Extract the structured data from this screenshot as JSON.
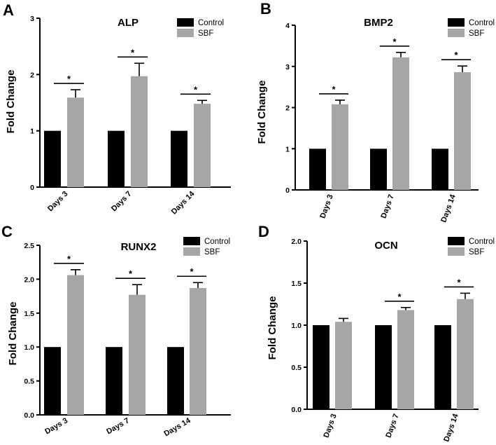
{
  "colors": {
    "control": "#000000",
    "sbf": "#a6a6a6",
    "axis": "#000000"
  },
  "chart_data": [
    {
      "panel": "A",
      "type": "bar",
      "title": "ALP",
      "ylabel": "Fold Change",
      "xlabel": "",
      "categories": [
        "Days 3",
        "Days 7",
        "Days 14"
      ],
      "ylim": [
        0,
        3
      ],
      "yticks": [
        "0",
        "1",
        "2",
        "3"
      ],
      "yticks_values": [
        0,
        1,
        2,
        3
      ],
      "series": [
        {
          "name": "Control",
          "values": [
            1,
            1,
            1
          ],
          "errors": [
            0,
            0,
            0
          ]
        },
        {
          "name": "SBF",
          "values": [
            1.59,
            1.97,
            1.48
          ],
          "errors": [
            0.14,
            0.23,
            0.06
          ]
        }
      ],
      "significance": [
        "*",
        "*",
        "*"
      ],
      "legend": "top-right",
      "category_label_rotation": -45
    },
    {
      "panel": "B",
      "type": "bar",
      "title": "BMP2",
      "ylabel": "Fold Change",
      "xlabel": "",
      "categories": [
        "Days 3",
        "Days 7",
        "Days 14"
      ],
      "ylim": [
        0,
        4
      ],
      "yticks": [
        "0",
        "1",
        "2",
        "3",
        "4"
      ],
      "yticks_values": [
        0,
        1,
        2,
        3,
        4
      ],
      "series": [
        {
          "name": "Control",
          "values": [
            1,
            1,
            1
          ],
          "errors": [
            0,
            0,
            0
          ]
        },
        {
          "name": "SBF",
          "values": [
            2.08,
            3.22,
            2.86
          ],
          "errors": [
            0.1,
            0.12,
            0.15
          ]
        }
      ],
      "significance": [
        "*",
        "*",
        "*"
      ],
      "legend": "top-right",
      "category_label_rotation": -70
    },
    {
      "panel": "C",
      "type": "bar",
      "title": "RUNX2",
      "ylabel": "Fold Change",
      "xlabel": "",
      "categories": [
        "Days 3",
        "Days 7",
        "Days 14"
      ],
      "ylim": [
        0,
        2.5
      ],
      "yticks": [
        "0.0",
        "0.5",
        "1.0",
        "1.5",
        "2.0",
        "2.5"
      ],
      "yticks_values": [
        0,
        0.5,
        1,
        1.5,
        2,
        2.5
      ],
      "series": [
        {
          "name": "Control",
          "values": [
            1,
            1,
            1
          ],
          "errors": [
            0,
            0,
            0
          ]
        },
        {
          "name": "SBF",
          "values": [
            2.06,
            1.77,
            1.87
          ],
          "errors": [
            0.08,
            0.15,
            0.08
          ]
        }
      ],
      "significance": [
        "*",
        "*",
        "*"
      ],
      "legend": "top-right",
      "category_label_rotation": -30
    },
    {
      "panel": "D",
      "type": "bar",
      "title": "OCN",
      "ylabel": "Fold Change",
      "xlabel": "",
      "categories": [
        "Days 3",
        "Days 7",
        "Days 14"
      ],
      "ylim": [
        0,
        2
      ],
      "yticks": [
        "0.0",
        "0.5",
        "1.0",
        "1.5",
        "2.0"
      ],
      "yticks_values": [
        0,
        0.5,
        1,
        1.5,
        2
      ],
      "series": [
        {
          "name": "Control",
          "values": [
            1,
            1,
            1
          ],
          "errors": [
            0,
            0,
            0
          ]
        },
        {
          "name": "SBF",
          "values": [
            1.04,
            1.18,
            1.31
          ],
          "errors": [
            0.04,
            0.03,
            0.07
          ]
        }
      ],
      "significance": [
        "",
        "*",
        "*"
      ],
      "legend": "top-right",
      "category_label_rotation": -70
    }
  ]
}
